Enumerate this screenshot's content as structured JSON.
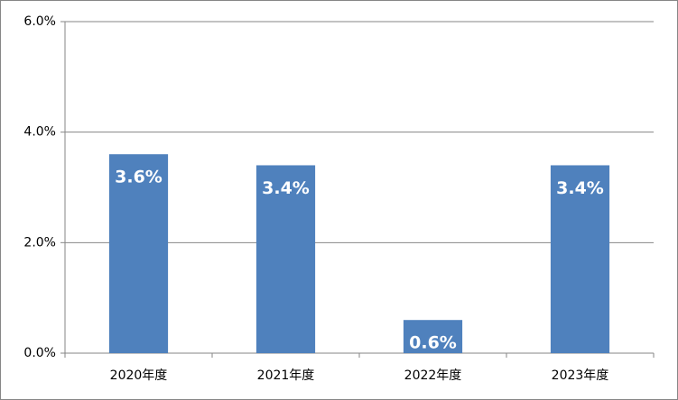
{
  "chart_data": {
    "type": "bar",
    "categories": [
      "2020年度",
      "2021年度",
      "2022年度",
      "2023年度"
    ],
    "values": [
      3.6,
      3.4,
      0.6,
      3.4
    ],
    "value_labels": [
      "3.6%",
      "3.4%",
      "0.6%",
      "3.4%"
    ],
    "color": "#4f81bd",
    "ylim": [
      0,
      6
    ],
    "yticks": [
      {
        "value": 0,
        "label": "0.0%"
      },
      {
        "value": 2,
        "label": "2.0%"
      },
      {
        "value": 4,
        "label": "4.0%"
      },
      {
        "value": 6,
        "label": "6.0%"
      }
    ],
    "grid": true
  }
}
